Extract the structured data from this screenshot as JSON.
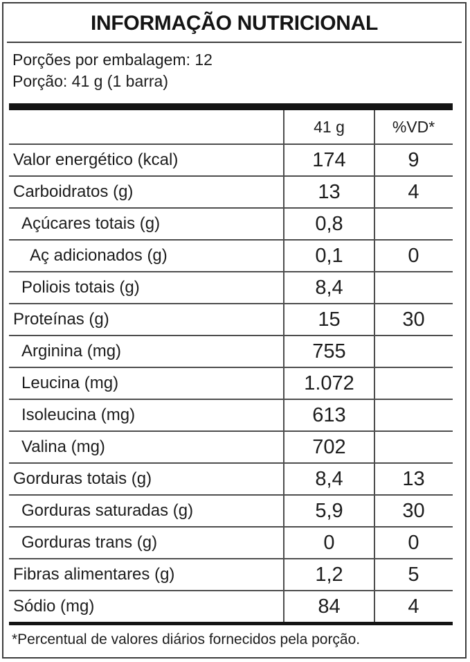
{
  "label": {
    "title": "INFORMAÇÃO NUTRICIONAL",
    "servings_per_package": "Porções por embalagem: 12",
    "serving_size": "Porção: 41 g (1 barra)",
    "footnote": "*Percentual de valores diários fornecidos pela porção."
  },
  "table": {
    "columns": {
      "amount_header": "41 g",
      "dv_header": "%VD*"
    },
    "rows": [
      {
        "label": "Valor energético (kcal)",
        "amount": "174",
        "dv": "9",
        "indent": 0
      },
      {
        "label": "Carboidratos (g)",
        "amount": "13",
        "dv": "4",
        "indent": 0
      },
      {
        "label": "Açúcares totais (g)",
        "amount": "0,8",
        "dv": "",
        "indent": 1
      },
      {
        "label": "Aç adicionados (g)",
        "amount": "0,1",
        "dv": "0",
        "indent": 2
      },
      {
        "label": "Poliois totais (g)",
        "amount": "8,4",
        "dv": "",
        "indent": 1
      },
      {
        "label": "Proteínas (g)",
        "amount": "15",
        "dv": "30",
        "indent": 0
      },
      {
        "label": "Arginina (mg)",
        "amount": "755",
        "dv": "",
        "indent": 1
      },
      {
        "label": "Leucina (mg)",
        "amount": "1.072",
        "dv": "",
        "indent": 1
      },
      {
        "label": "Isoleucina (mg)",
        "amount": "613",
        "dv": "",
        "indent": 1
      },
      {
        "label": "Valina (mg)",
        "amount": "702",
        "dv": "",
        "indent": 1
      },
      {
        "label": "Gorduras totais (g)",
        "amount": "8,4",
        "dv": "13",
        "indent": 0
      },
      {
        "label": "Gorduras saturadas (g)",
        "amount": "5,9",
        "dv": "30",
        "indent": 1
      },
      {
        "label": "Gorduras trans (g)",
        "amount": "0",
        "dv": "0",
        "indent": 1
      },
      {
        "label": "Fibras alimentares (g)",
        "amount": "1,2",
        "dv": "5",
        "indent": 0
      },
      {
        "label": "Sódio (mg)",
        "amount": "84",
        "dv": "4",
        "indent": 0
      }
    ]
  }
}
